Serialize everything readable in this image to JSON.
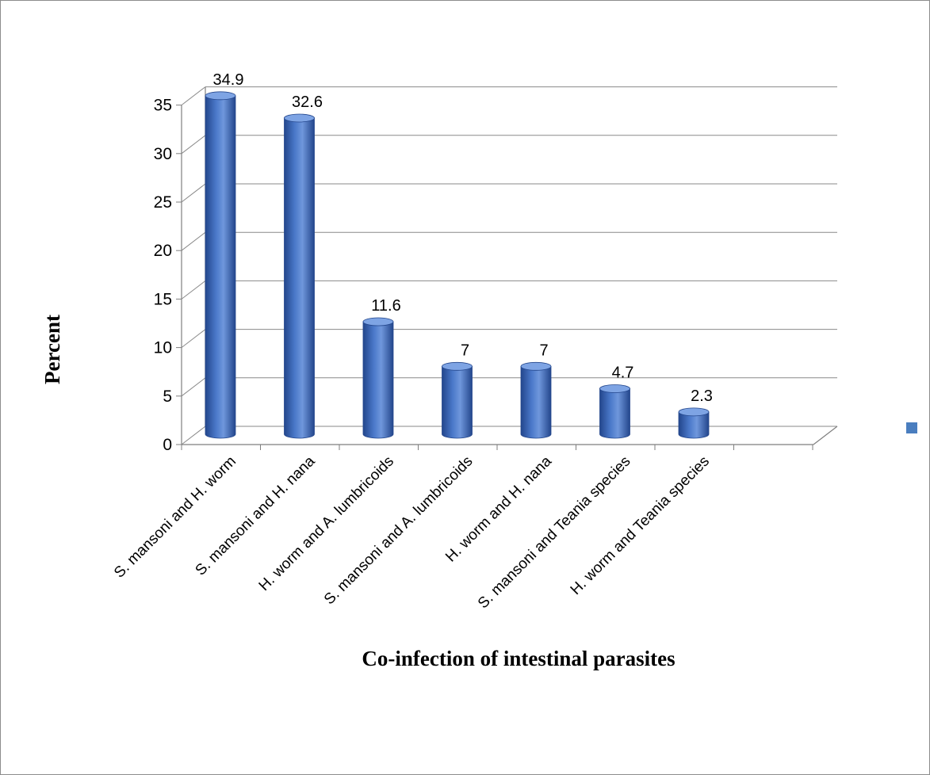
{
  "chart_data": {
    "type": "bar",
    "categories": [
      "S. mansoni and H. worm",
      "S. mansoni and H. nana",
      "H. worm and A. lumbricoids",
      "S. mansoni and A. lumbricoids",
      "H. worm and H. nana",
      "S. mansoni and Teania species",
      "H. worm and Teania species"
    ],
    "series": [
      {
        "values": [
          34.9,
          32.6,
          11.6,
          7,
          7,
          4.7,
          2.3
        ]
      }
    ],
    "data_labels": [
      "34.9",
      "32.6",
      "11.6",
      "7",
      "7",
      "4.7",
      "2.3"
    ],
    "title": "",
    "xlabel": "Co-infection of intestinal parasites",
    "ylabel": "Percent",
    "ylim": [
      0,
      35
    ],
    "yticks": [
      0,
      5,
      10,
      15,
      20,
      25,
      30,
      35
    ],
    "grid": true,
    "legend": "right",
    "colors": {
      "bar": "#4a78c9",
      "bar_dark": "#23468c",
      "bar_light": "#7ea4e4",
      "legend": "#4a7ebf"
    }
  }
}
